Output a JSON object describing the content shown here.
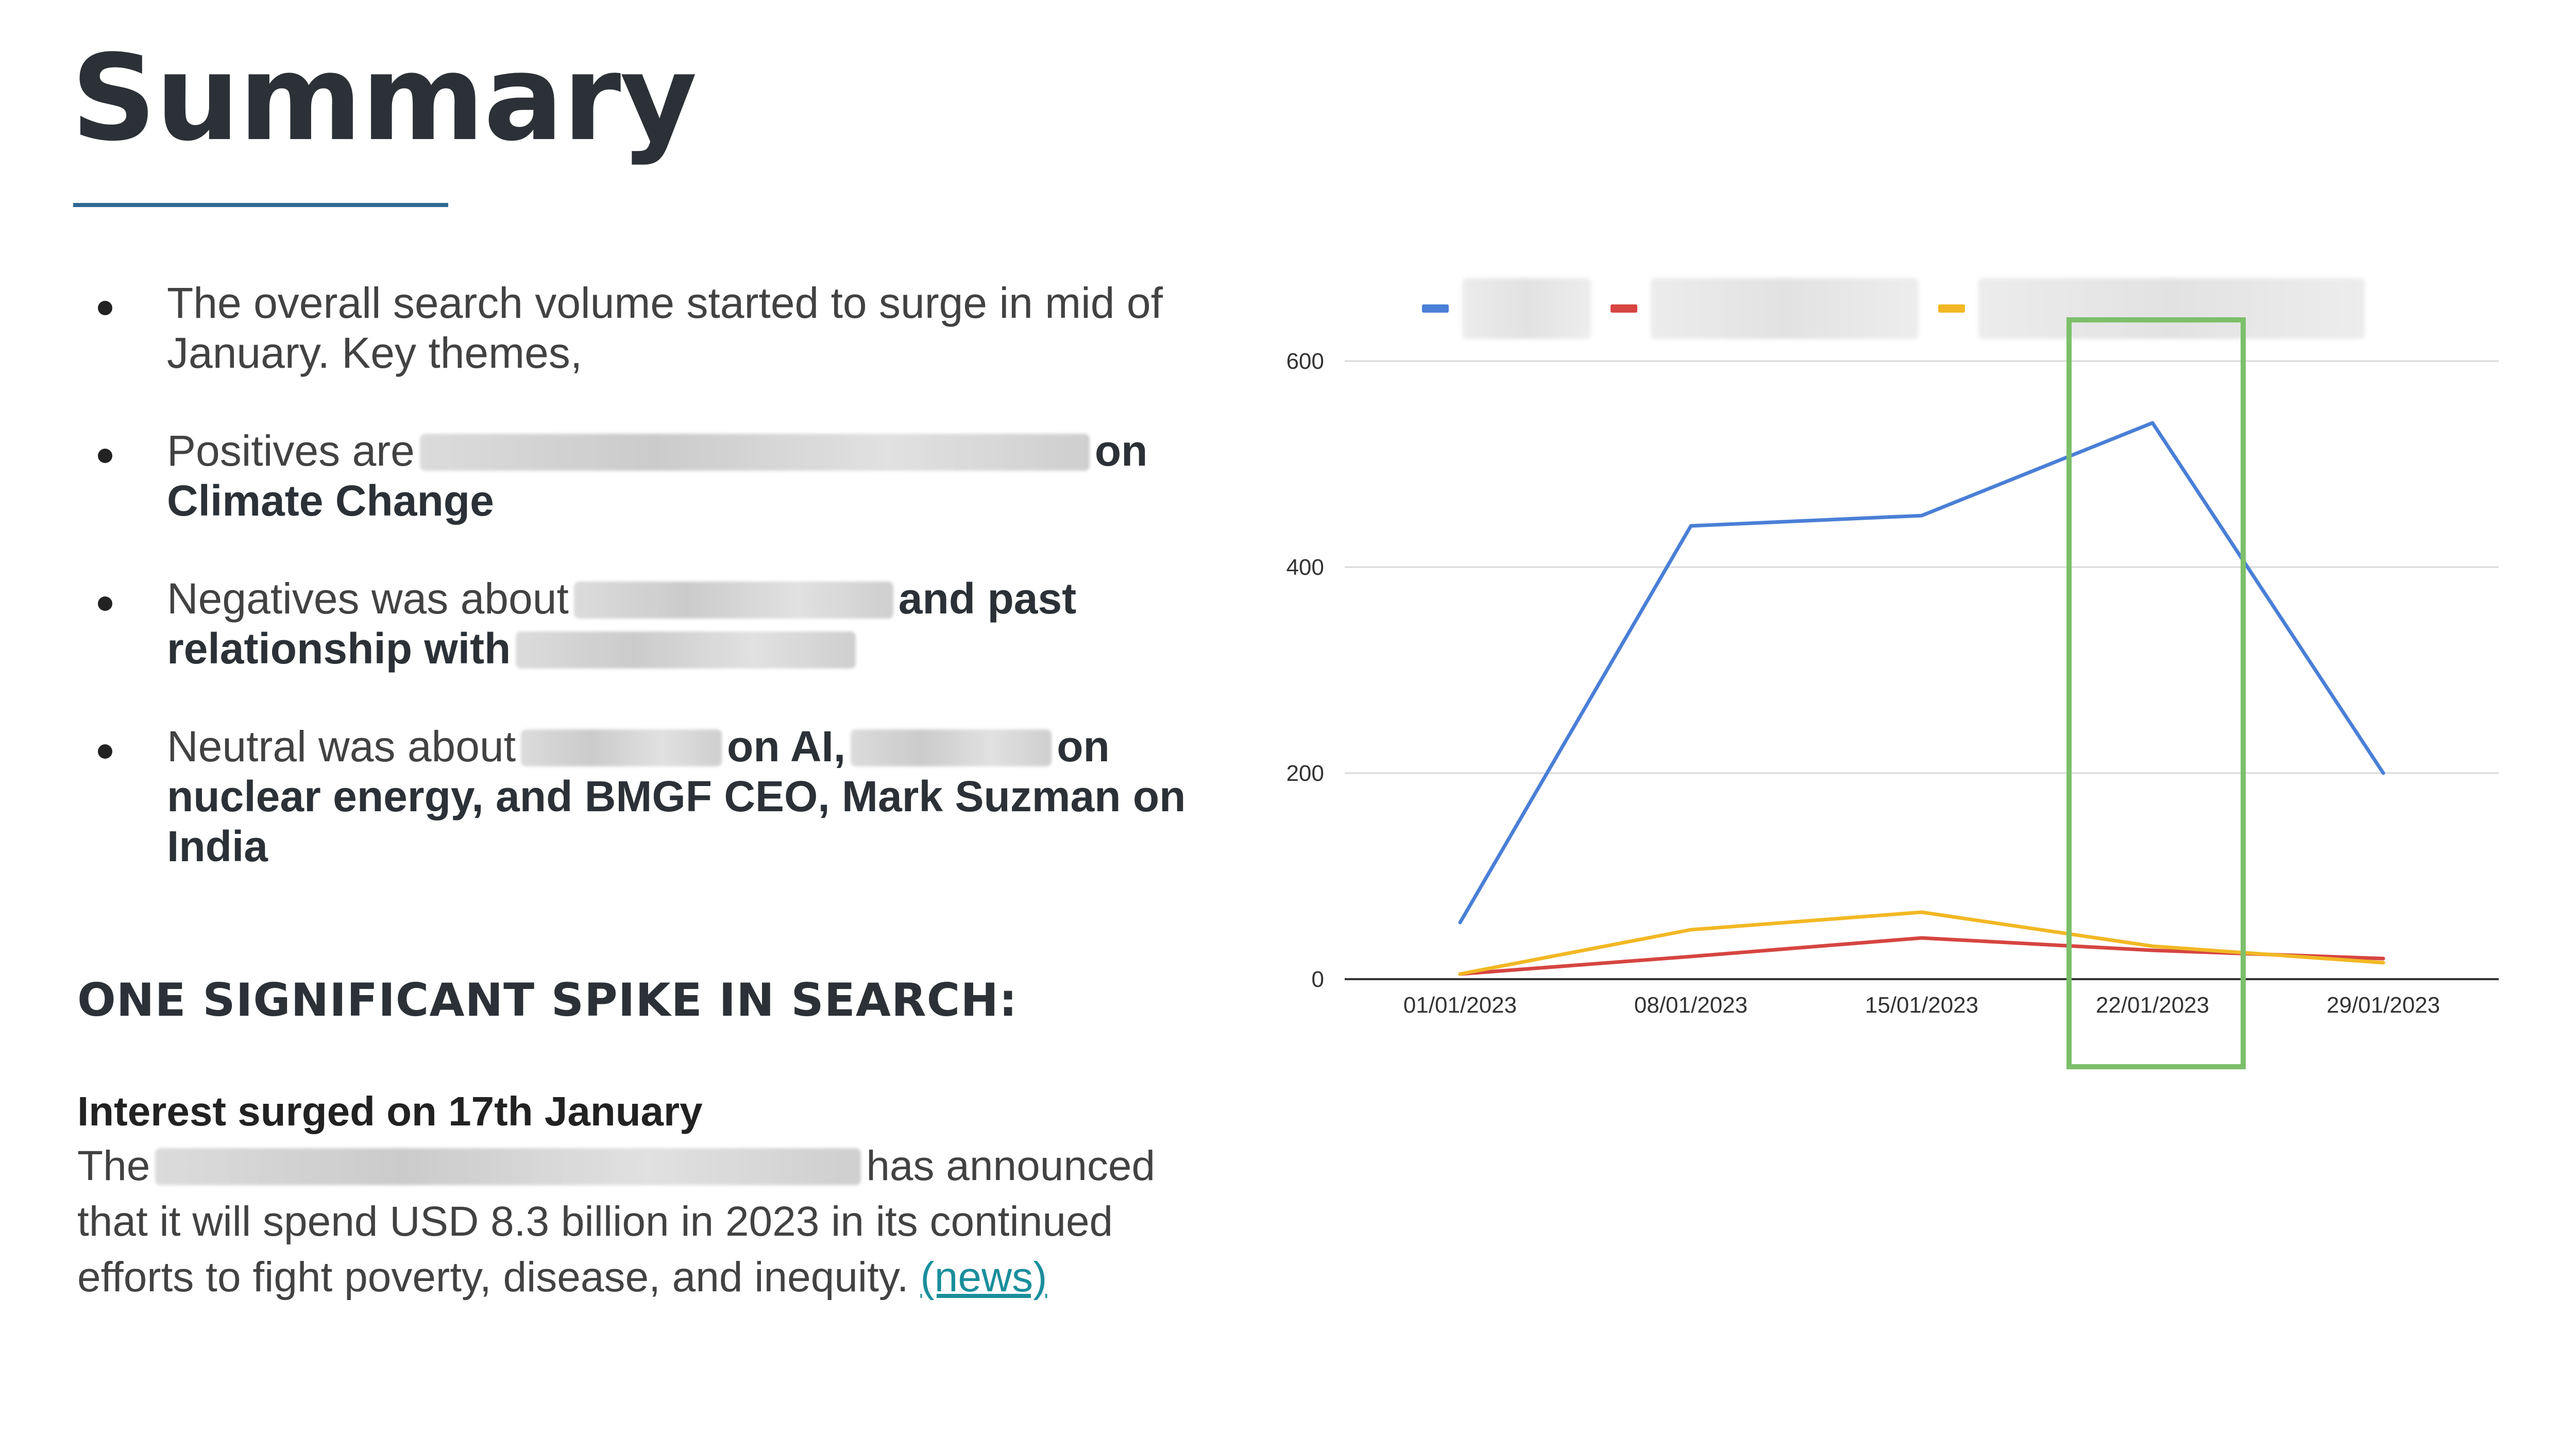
{
  "page": {
    "title": "Summary",
    "bullets": [
      {
        "text": "The overall  search volume started to surge in mid of January. Key themes,"
      },
      {
        "lead": "Positives are",
        "tail": "on",
        "bold": "Climate Change"
      },
      {
        "lead": "Negatives was about",
        "tail": "and past",
        "bold": "relationship with"
      },
      {
        "lead": "Neutral was about",
        "mid": "on AI,",
        "tail": "on",
        "bold": "nuclear energy, and BMGF CEO, Mark Suzman on India"
      }
    ],
    "spike_heading": "ONE SIGNIFICANT SPIKE IN SEARCH:",
    "interest_heading": "Interest surged on 17th January",
    "news": {
      "pre": "The",
      "post": "has announced that it will spend USD 8.3 billion in 2023 in its continued efforts to fight poverty, disease, and inequity.",
      "link": "(news)"
    },
    "colors": {
      "title_rule": "#2f6a94",
      "link": "#1a8e9c",
      "highlight_box": "#7cbf6a"
    }
  },
  "chart_data": {
    "type": "line",
    "categories": [
      "01/01/2023",
      "08/01/2023",
      "15/01/2023",
      "22/01/2023",
      "29/01/2023"
    ],
    "ylim": [
      0,
      600
    ],
    "yticks": [
      0,
      200,
      400,
      600
    ],
    "grid": true,
    "legend_position": "top",
    "highlighted_category": "22/01/2023",
    "series": [
      {
        "color": "#4a7fd6",
        "values": [
          55,
          440,
          450,
          540,
          200
        ]
      },
      {
        "color": "#d64541",
        "values": [
          5,
          22,
          40,
          28,
          20
        ]
      },
      {
        "color": "#f2b824",
        "values": [
          5,
          48,
          65,
          32,
          16
        ]
      }
    ]
  }
}
